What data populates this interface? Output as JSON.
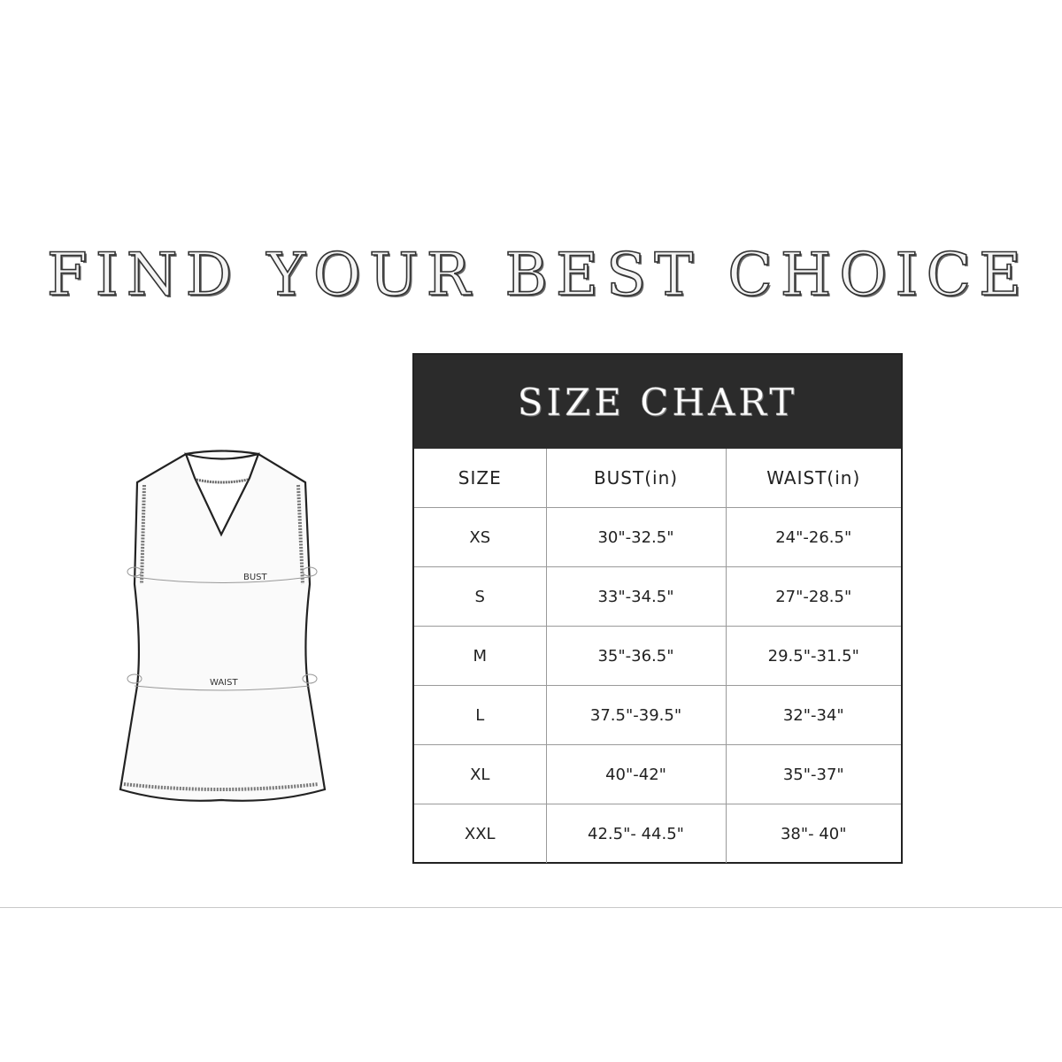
{
  "title": "FIND YOUR BEST CHOICE",
  "garment": {
    "bust_label": "BUST",
    "waist_label": "WAIST"
  },
  "size_chart": {
    "heading": "SIZE CHART",
    "columns": [
      "SIZE",
      "BUST(in)",
      "WAIST(in)"
    ],
    "rows": [
      [
        "XS",
        "30\"-32.5\"",
        "24\"-26.5\""
      ],
      [
        "S",
        "33\"-34.5\"",
        "27\"-28.5\""
      ],
      [
        "M",
        "35\"-36.5\"",
        "29.5\"-31.5\""
      ],
      [
        "L",
        "37.5\"-39.5\"",
        "32\"-34\""
      ],
      [
        "XL",
        "40\"-42\"",
        "35\"-37\""
      ],
      [
        "XXL",
        "42.5\"- 44.5\"",
        "38\"- 40\""
      ]
    ]
  }
}
